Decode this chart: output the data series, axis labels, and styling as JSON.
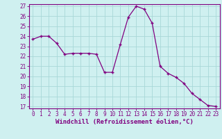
{
  "x": [
    0,
    1,
    2,
    3,
    4,
    5,
    6,
    7,
    8,
    9,
    10,
    11,
    12,
    13,
    14,
    15,
    16,
    17,
    18,
    19,
    20,
    21,
    22,
    23
  ],
  "y": [
    23.7,
    24.0,
    24.0,
    23.3,
    22.2,
    22.3,
    22.3,
    22.3,
    22.2,
    20.4,
    20.4,
    23.2,
    25.9,
    27.0,
    26.7,
    25.3,
    21.0,
    20.3,
    19.9,
    19.3,
    18.3,
    17.7,
    17.1,
    17.0
  ],
  "line_color": "#800080",
  "marker": "+",
  "marker_size": 3.5,
  "marker_lw": 1.0,
  "bg_color": "#cff0f0",
  "grid_color": "#a8d8d8",
  "xlabel": "Windchill (Refroidissement éolien,°C)",
  "ylim": [
    17,
    27
  ],
  "xlim": [
    0,
    23
  ],
  "yticks": [
    17,
    18,
    19,
    20,
    21,
    22,
    23,
    24,
    25,
    26,
    27
  ],
  "xticks": [
    0,
    1,
    2,
    3,
    4,
    5,
    6,
    7,
    8,
    9,
    10,
    11,
    12,
    13,
    14,
    15,
    16,
    17,
    18,
    19,
    20,
    21,
    22,
    23
  ],
  "tick_fontsize": 5.5,
  "xlabel_fontsize": 6.5,
  "xlabel_bold": true,
  "line_width": 0.9
}
